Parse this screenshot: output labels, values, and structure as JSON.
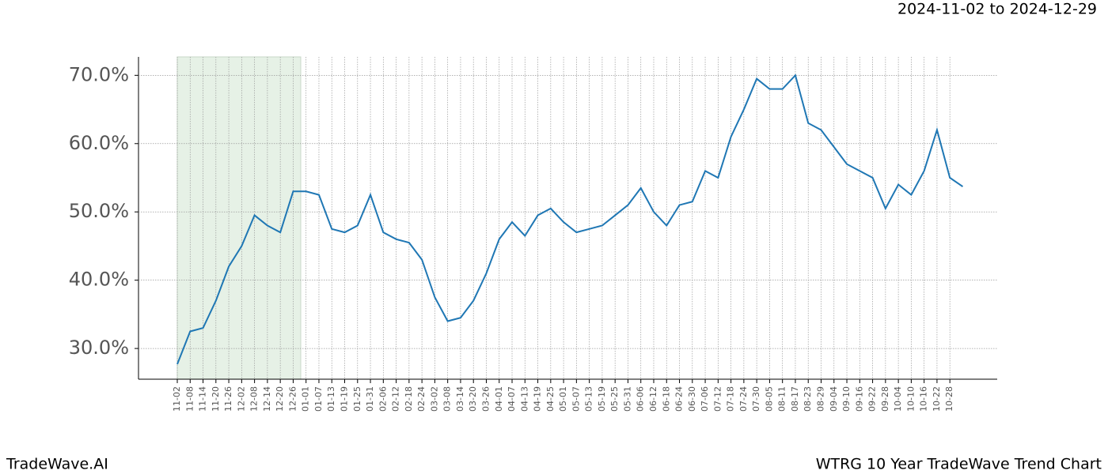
{
  "header": {
    "date_range": "2024-11-02 to 2024-12-29"
  },
  "footer": {
    "left": "TradeWave.AI",
    "right": "WTRG 10 Year TradeWave Trend Chart"
  },
  "chart_data": {
    "type": "line",
    "color": "#1f77b4",
    "grid": true,
    "categories": [
      "11-02",
      "11-08",
      "11-14",
      "11-20",
      "11-26",
      "12-02",
      "12-08",
      "12-14",
      "12-20",
      "12-26",
      "01-01",
      "01-07",
      "01-13",
      "01-19",
      "01-25",
      "01-31",
      "02-06",
      "02-12",
      "02-18",
      "02-24",
      "03-02",
      "03-08",
      "03-14",
      "03-20",
      "03-26",
      "04-01",
      "04-07",
      "04-13",
      "04-19",
      "04-25",
      "05-01",
      "05-07",
      "05-13",
      "05-19",
      "05-25",
      "05-31",
      "06-06",
      "06-12",
      "06-18",
      "06-24",
      "06-30",
      "07-06",
      "07-12",
      "07-18",
      "07-24",
      "07-30",
      "08-05",
      "08-11",
      "08-17",
      "08-23",
      "08-29",
      "09-04",
      "09-10",
      "09-16",
      "09-22",
      "09-28",
      "10-04",
      "10-10",
      "10-16",
      "10-22",
      "10-28",
      null
    ],
    "values": [
      27.7,
      32.5,
      33,
      37,
      42,
      45,
      49.5,
      48,
      47,
      53,
      53,
      52.5,
      47.5,
      47,
      48,
      52.5,
      47,
      46,
      45.5,
      43,
      37.5,
      34,
      34.5,
      37,
      41,
      46,
      48.5,
      46.5,
      49.5,
      50.5,
      48.5,
      47,
      47.5,
      48,
      49.5,
      51,
      53.5,
      50,
      48,
      51,
      51.5,
      56,
      55,
      61,
      65,
      69.5,
      68,
      68,
      70,
      63,
      62,
      59.5,
      57,
      56,
      55,
      50.5,
      54,
      52.5,
      56,
      62,
      55,
      53.7
    ],
    "ylim": [
      25.5,
      72.7
    ],
    "yticks": [
      {
        "value": 30,
        "label": "30.0%"
      },
      {
        "value": 40,
        "label": "40.0%"
      },
      {
        "value": 50,
        "label": "50.0%"
      },
      {
        "value": 60,
        "label": "60.0%"
      },
      {
        "value": 70,
        "label": "70.0%"
      }
    ]
  }
}
